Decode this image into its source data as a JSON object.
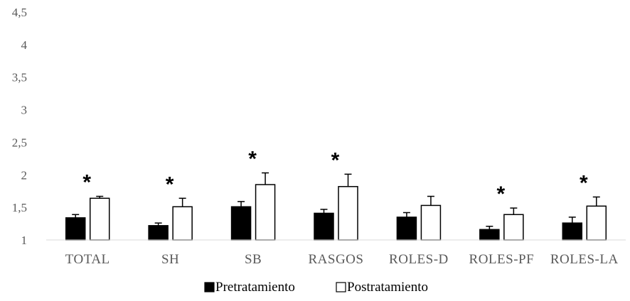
{
  "chart_data": {
    "type": "bar",
    "categories": [
      "TOTAL",
      "SH",
      "SB",
      "RASGOS",
      "ROLES-D",
      "ROLES-PF",
      "ROLES-LA"
    ],
    "series": [
      {
        "name": "Pretratamiento",
        "values": [
          1.34,
          1.22,
          1.51,
          1.41,
          1.35,
          1.16,
          1.26
        ],
        "errors": [
          0.05,
          0.04,
          0.08,
          0.06,
          0.07,
          0.05,
          0.09
        ],
        "color": "#000000"
      },
      {
        "name": "Postratamiento",
        "values": [
          1.64,
          1.51,
          1.85,
          1.82,
          1.53,
          1.39,
          1.52
        ],
        "errors": [
          0.03,
          0.13,
          0.18,
          0.19,
          0.14,
          0.1,
          0.14
        ],
        "color": "#ffffff"
      }
    ],
    "significance_marker": "*",
    "significant": [
      true,
      true,
      true,
      true,
      false,
      true,
      true
    ],
    "y_ticks": [
      "1",
      "1,5",
      "2",
      "2,5",
      "3",
      "3,5",
      "4",
      "4,5"
    ],
    "ylim": [
      1,
      4.5
    ],
    "grid": false,
    "legend_position": "bottom",
    "title": "",
    "xlabel": "",
    "ylabel": ""
  }
}
